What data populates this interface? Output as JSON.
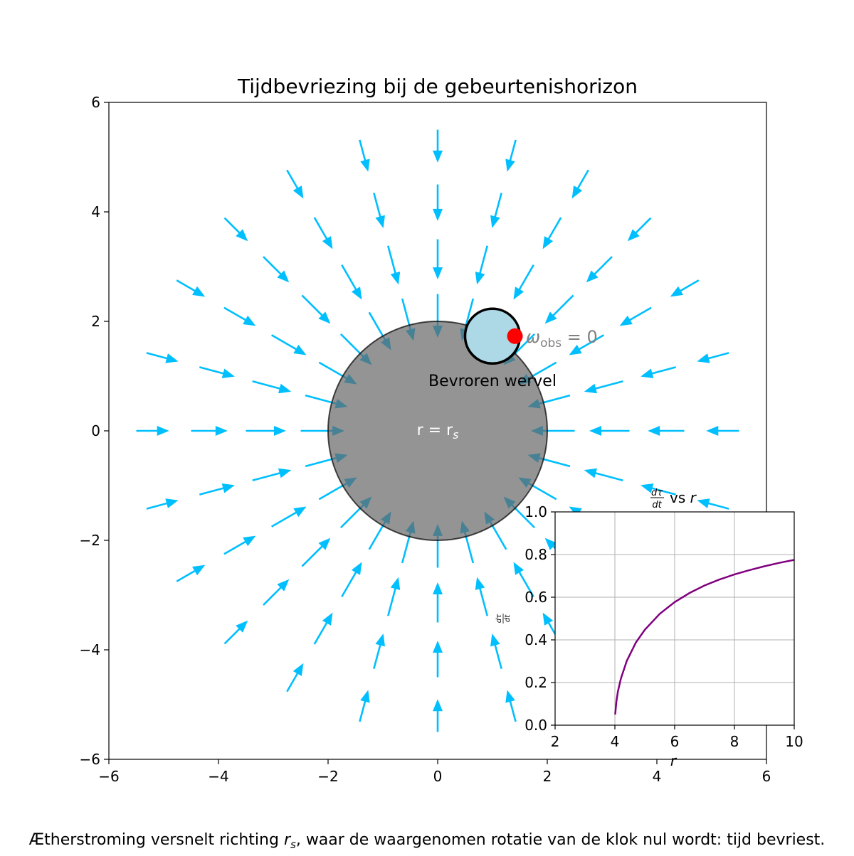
{
  "chart_data": [
    {
      "type": "vector_field",
      "title": "Tijdbevriezing bij de gebeurtenishorizon",
      "xlim": [
        -6,
        6
      ],
      "ylim": [
        -6,
        6
      ],
      "xticks": [
        -6,
        -4,
        -2,
        0,
        2,
        4,
        6
      ],
      "yticks": [
        -6,
        -4,
        -2,
        0,
        2,
        4,
        6
      ],
      "xtick_labels": [
        "−6",
        "−4",
        "−2",
        "0",
        "2",
        "4",
        "6"
      ],
      "ytick_labels": [
        "−6",
        "−4",
        "−2",
        "0",
        "2",
        "4",
        "6"
      ],
      "grid": false,
      "horizon": {
        "center": [
          0,
          0
        ],
        "radius": 2,
        "color": "#666666",
        "label": "r = r",
        "label_sub": "s"
      },
      "flow": {
        "color": "#00bfff",
        "directions": 24,
        "radii": [
          5.5,
          4.5,
          3.5,
          2.5
        ],
        "direction": "inward"
      },
      "vortex": {
        "center": [
          1,
          1.73
        ],
        "radius": 0.5,
        "fill": "#add8e6",
        "label": "Bevroren wervel",
        "marker_point": [
          1.41,
          1.73
        ],
        "marker_color": "#ff0000"
      },
      "omega_label": {
        "symbol": "ω",
        "sub": "obs",
        "rest": " = 0",
        "color": "#808080"
      }
    },
    {
      "type": "line",
      "title_prefix": "vs",
      "title_var": "r",
      "ylabel_num": "dτ",
      "ylabel_den": "dt",
      "xlabel": "r",
      "xlim": [
        2,
        10
      ],
      "ylim": [
        0,
        1
      ],
      "xticks": [
        2,
        4,
        6,
        8,
        10
      ],
      "yticks": [
        0.0,
        0.2,
        0.4,
        0.6,
        0.8,
        1.0
      ],
      "xtick_labels": [
        "2",
        "4",
        "6",
        "8",
        "10"
      ],
      "ytick_labels": [
        "0.0",
        "0.2",
        "0.4",
        "0.6",
        "0.8",
        "1.0"
      ],
      "grid": true,
      "color": "#800080",
      "series": [
        {
          "x": [
            4.01,
            4.05,
            4.1,
            4.2,
            4.4,
            4.7,
            5,
            5.5,
            6,
            6.5,
            7,
            7.5,
            8,
            8.5,
            9,
            9.5,
            10
          ],
          "y": [
            0.05,
            0.11,
            0.157,
            0.218,
            0.302,
            0.387,
            0.447,
            0.522,
            0.577,
            0.62,
            0.655,
            0.683,
            0.707,
            0.727,
            0.745,
            0.761,
            0.775
          ]
        }
      ]
    }
  ],
  "caption": {
    "before": "Ætherstroming versnelt richting ",
    "var": "r",
    "sub": "s",
    "after": ", waar de waargenomen rotatie van de klok nul wordt: tijd bevriest."
  }
}
